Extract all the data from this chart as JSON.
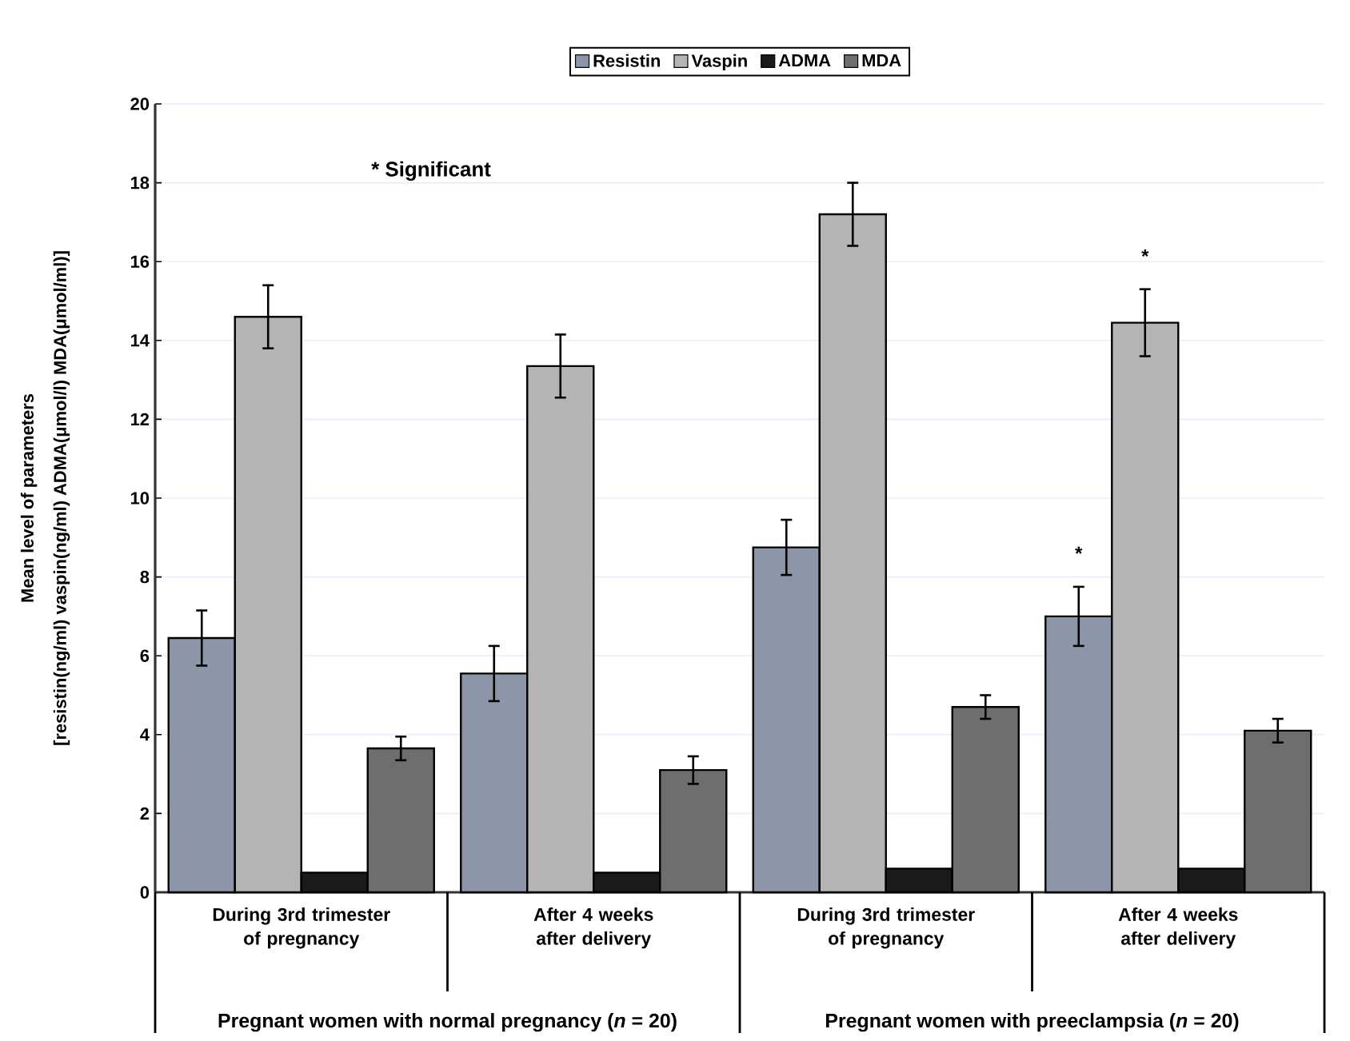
{
  "chart_data": {
    "type": "bar",
    "categories": [
      "During 3rd  trimester of pregnancy",
      "After 4 weeks after delivery",
      "During 3rd  trimester of pregnancy",
      "After 4 weeks after delivery"
    ],
    "series": [
      {
        "name": "Resistin",
        "color": "#8c96a8",
        "values": [
          6.45,
          5.55,
          8.75,
          7.0
        ],
        "errors": [
          0.7,
          0.7,
          0.7,
          0.75
        ]
      },
      {
        "name": "Vaspin",
        "color": "#b4b4b4",
        "values": [
          14.6,
          13.35,
          17.2,
          14.45
        ],
        "errors": [
          0.8,
          0.8,
          0.8,
          0.85
        ]
      },
      {
        "name": "ADMA",
        "color": "#1a1a1a",
        "values": [
          0.5,
          0.5,
          0.6,
          0.6
        ]
      },
      {
        "name": "MDA",
        "color": "#6e6e6e",
        "values": [
          3.65,
          3.1,
          4.7,
          4.1
        ],
        "errors": [
          0.3,
          0.35,
          0.3,
          0.3
        ]
      }
    ],
    "ylabel": "[resistin(ng/ml) vaspin(ng/ml) ADMA(μmol/l) MDA(μmol/ml)]",
    "annotations": [
      "Mean level of parameters",
      "* Significant",
      "Pregnant women with normal pregnancy (*n* = 20)",
      "Pregnant women with preeclampsia (*n* = 20)",
      "*",
      "*"
    ],
    "ylim": [
      0,
      20
    ],
    "yticks": [
      0,
      2,
      4,
      6,
      8,
      10,
      12,
      14,
      16,
      18,
      20
    ],
    "grid": "y",
    "legend": "top"
  }
}
